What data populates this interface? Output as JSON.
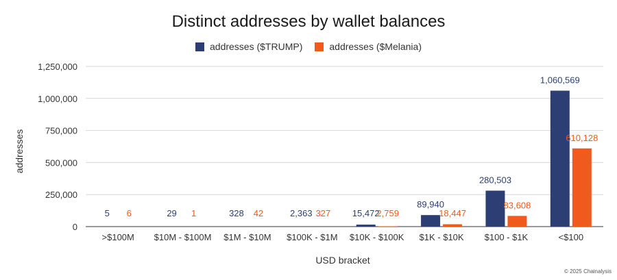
{
  "chart_data": {
    "type": "bar",
    "title": "Distinct addresses by wallet balances",
    "xlabel": "USD bracket",
    "ylabel": "addresses",
    "categories": [
      ">$100M",
      "$10M - $100M",
      "$1M - $10M",
      "$100K - $1M",
      "$10K - $100K",
      "$1K - $10K",
      "$100 - $1K",
      "<$100"
    ],
    "series": [
      {
        "name": "addresses ($TRUMP)",
        "color": "#2c3e73",
        "values": [
          5,
          29,
          328,
          2363,
          15472,
          89940,
          280503,
          1060569
        ],
        "labels": [
          "5",
          "29",
          "328",
          "2,363",
          "15,472",
          "89,940",
          "280,503",
          "1,060,569"
        ]
      },
      {
        "name": "addresses ($Melania)",
        "color": "#f15a1d",
        "values": [
          6,
          1,
          42,
          327,
          2759,
          18447,
          83608,
          610128
        ],
        "labels": [
          "6",
          "1",
          "42",
          "327",
          "2,759",
          "18,447",
          "83,608",
          "610,128"
        ]
      }
    ],
    "ylim": [
      0,
      1250000
    ],
    "yticks": [
      0,
      250000,
      500000,
      750000,
      1000000,
      1250000
    ],
    "ytick_labels": [
      "0",
      "250,000",
      "500,000",
      "750,000",
      "1,000,000",
      "1,250,000"
    ],
    "grid": true,
    "legend": "top-center"
  },
  "footer": {
    "copyright": "© 2025 Chainalysis"
  }
}
